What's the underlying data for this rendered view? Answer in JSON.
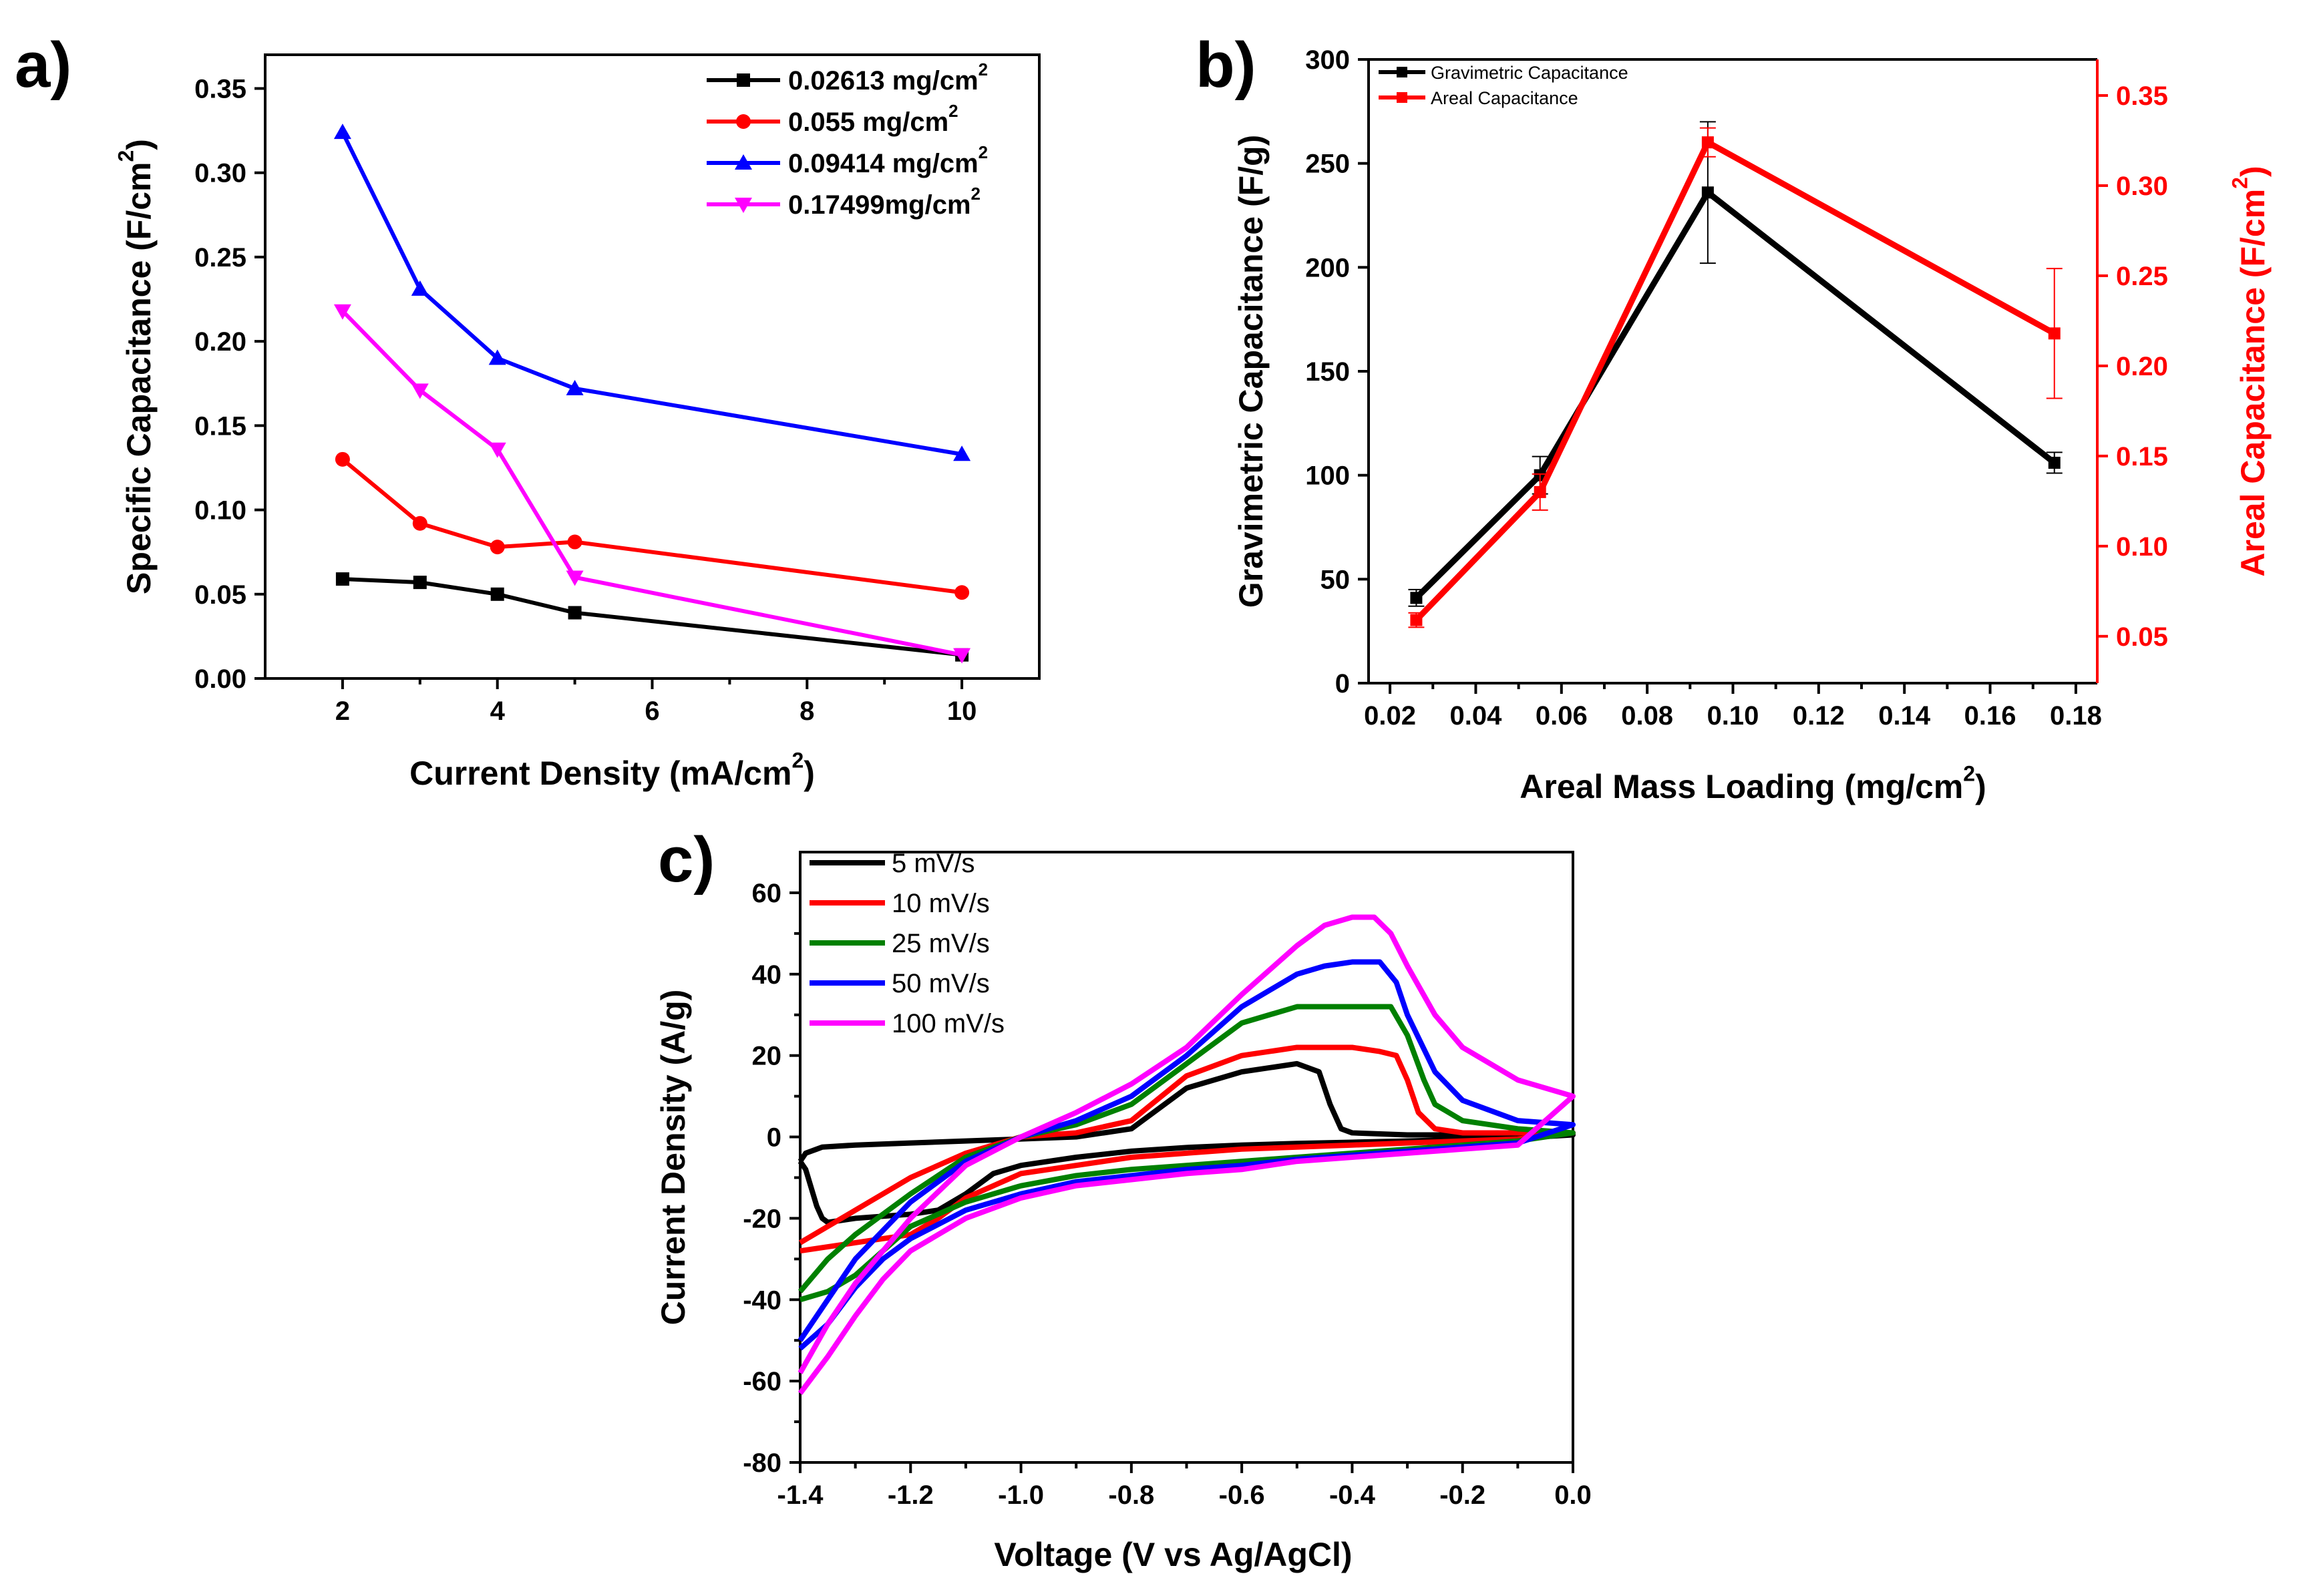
{
  "chart_data": [
    {
      "id": "a",
      "type": "line",
      "panel_label": "a)",
      "xlabel": "Current Density (mA/cm",
      "xlabel_sup": "2",
      "xlabel_tail": ")",
      "ylabel": "Specific Capacitance (F/cm",
      "ylabel_sup": "2",
      "ylabel_tail": ")",
      "xlim": [
        1,
        11
      ],
      "ylim": [
        0,
        0.37
      ],
      "xticks": [
        2,
        4,
        6,
        8,
        10
      ],
      "xtick_labels": [
        "2",
        "4",
        "6",
        "8",
        "10"
      ],
      "yticks": [
        0,
        0.05,
        0.1,
        0.15,
        0.2,
        0.25,
        0.3,
        0.35
      ],
      "ytick_labels": [
        "0.00",
        "0.05",
        "0.10",
        "0.15",
        "0.20",
        "0.25",
        "0.30",
        "0.35"
      ],
      "legend_position": "top-right",
      "x": [
        2,
        3,
        4,
        5,
        10
      ],
      "series": [
        {
          "name": "0.02613 mg/cm",
          "sup": "2",
          "color": "#000000",
          "marker": "square",
          "values": [
            0.059,
            0.057,
            0.05,
            0.039,
            0.014
          ]
        },
        {
          "name": "0.055 mg/cm",
          "sup": "2",
          "color": "#ff0000",
          "marker": "circle",
          "values": [
            0.13,
            0.092,
            0.078,
            0.081,
            0.051
          ]
        },
        {
          "name": "0.09414 mg/cm",
          "sup": "2",
          "color": "#0000ff",
          "marker": "triangle-up",
          "values": [
            0.324,
            0.231,
            0.19,
            0.172,
            0.133
          ]
        },
        {
          "name": "0.17499mg/cm",
          "sup": "2",
          "color": "#ff00ff",
          "marker": "triangle-down",
          "values": [
            0.218,
            0.171,
            0.136,
            0.06,
            0.014
          ]
        }
      ]
    },
    {
      "id": "b",
      "type": "line",
      "panel_label": "b)",
      "xlabel": "Areal Mass Loading (mg/cm",
      "xlabel_sup": "2",
      "xlabel_tail": ")",
      "ylabel": "Gravimetric Capacitance (F/g)",
      "y2label": "Areal Capacitance (F/cm",
      "y2label_sup": "2",
      "y2label_tail": ")",
      "xlim": [
        0.015,
        0.185
      ],
      "ylim": [
        0,
        300
      ],
      "y2lim": [
        0.024,
        0.37
      ],
      "xticks": [
        0.02,
        0.04,
        0.06,
        0.08,
        0.1,
        0.12,
        0.14,
        0.16,
        0.18
      ],
      "xtick_labels": [
        "0.02",
        "0.04",
        "0.06",
        "0.08",
        "0.10",
        "0.12",
        "0.14",
        "0.16",
        "0.18"
      ],
      "yticks": [
        0,
        50,
        100,
        150,
        200,
        250,
        300
      ],
      "ytick_labels": [
        "0",
        "50",
        "100",
        "150",
        "200",
        "250",
        "300"
      ],
      "y2ticks": [
        0.05,
        0.1,
        0.15,
        0.2,
        0.25,
        0.3,
        0.35
      ],
      "y2tick_labels": [
        "0.05",
        "0.10",
        "0.15",
        "0.20",
        "0.25",
        "0.30",
        "0.35"
      ],
      "legend_position": "top-left",
      "x": [
        0.02613,
        0.055,
        0.09414,
        0.17499
      ],
      "series": [
        {
          "name": "Gravimetric Capacitance",
          "color": "#000000",
          "axis": "left",
          "values": [
            41,
            100,
            236,
            106
          ],
          "err": [
            4,
            9,
            34,
            5
          ]
        },
        {
          "name": "Areal Capacitance",
          "color": "#ff0000",
          "axis": "right",
          "values": [
            0.059,
            0.13,
            0.324,
            0.218
          ],
          "err": [
            0.004,
            0.01,
            0.008,
            0.036
          ]
        }
      ]
    },
    {
      "id": "c",
      "type": "line",
      "panel_label": "c)",
      "xlabel": "Voltage (V vs Ag/AgCl)",
      "ylabel": "Current Density (A/g)",
      "xlim": [
        -1.4,
        0
      ],
      "ylim": [
        -80,
        70
      ],
      "xticks": [
        -1.4,
        -1.2,
        -1.0,
        -0.8,
        -0.6,
        -0.4,
        -0.2,
        0.0
      ],
      "xtick_labels": [
        "-1.4",
        "-1.2",
        "-1.0",
        "-0.8",
        "-0.6",
        "-0.4",
        "-0.2",
        "0.0"
      ],
      "yticks": [
        -80,
        -60,
        -40,
        -20,
        0,
        20,
        40,
        60
      ],
      "ytick_labels": [
        "-80",
        "-60",
        "-40",
        "-20",
        "0",
        "20",
        "40",
        "60"
      ],
      "legend_position": "top-left",
      "series": [
        {
          "name": "5 mV/s",
          "color": "#000000",
          "x": [
            -1.4,
            -1.39,
            -1.37,
            -1.36,
            -1.3,
            -1.2,
            -1.1,
            -1.0,
            -0.9,
            -0.8,
            -0.7,
            -0.6,
            -0.5,
            -0.46,
            -0.44,
            -0.42,
            -0.4,
            -0.3,
            -0.2,
            -0.1,
            0.0,
            -0.1,
            -0.2,
            -0.3,
            -0.4,
            -0.5,
            -0.6,
            -0.7,
            -0.8,
            -0.9,
            -1.0,
            -1.05,
            -1.1,
            -1.15,
            -1.2,
            -1.3,
            -1.35,
            -1.36,
            -1.37,
            -1.39,
            -1.4
          ],
          "y": [
            -6,
            -4,
            -3,
            -2.5,
            -2,
            -1.5,
            -1,
            -0.5,
            0,
            2,
            12,
            16,
            18,
            16,
            8,
            2,
            1,
            0.5,
            0.5,
            0.5,
            0.5,
            -0.3,
            -0.6,
            -1,
            -1.3,
            -1.6,
            -2,
            -2.6,
            -3.5,
            -5,
            -7,
            -9,
            -14,
            -18,
            -19,
            -20,
            -21,
            -20,
            -17,
            -8,
            -6
          ]
        },
        {
          "name": "10 mV/s",
          "color": "#ff0000",
          "x": [
            -1.4,
            -1.35,
            -1.3,
            -1.2,
            -1.1,
            -1.0,
            -0.9,
            -0.8,
            -0.7,
            -0.6,
            -0.5,
            -0.45,
            -0.4,
            -0.35,
            -0.32,
            -0.3,
            -0.28,
            -0.25,
            -0.2,
            -0.1,
            0.0,
            -0.1,
            -0.2,
            -0.3,
            -0.4,
            -0.5,
            -0.6,
            -0.7,
            -0.8,
            -0.9,
            -1.0,
            -1.1,
            -1.15,
            -1.2,
            -1.3,
            -1.4
          ],
          "y": [
            -26,
            -22,
            -18,
            -10,
            -4,
            0,
            1,
            4,
            15,
            20,
            22,
            22,
            22,
            21,
            20,
            14,
            6,
            2,
            1,
            1,
            1,
            -0.5,
            -1,
            -1.5,
            -2,
            -2.5,
            -3,
            -4,
            -5,
            -7,
            -9,
            -15,
            -20,
            -24,
            -26,
            -28
          ]
        },
        {
          "name": "25 mV/s",
          "color": "#008000",
          "x": [
            -1.4,
            -1.35,
            -1.3,
            -1.2,
            -1.1,
            -1.0,
            -0.9,
            -0.8,
            -0.7,
            -0.6,
            -0.5,
            -0.4,
            -0.33,
            -0.3,
            -0.27,
            -0.25,
            -0.2,
            -0.1,
            0.0,
            -0.1,
            -0.2,
            -0.3,
            -0.4,
            -0.5,
            -0.6,
            -0.7,
            -0.8,
            -0.9,
            -1.0,
            -1.1,
            -1.2,
            -1.25,
            -1.3,
            -1.35,
            -1.4
          ],
          "y": [
            -38,
            -30,
            -24,
            -14,
            -5,
            0,
            3,
            8,
            18,
            28,
            32,
            32,
            32,
            25,
            14,
            8,
            4,
            2,
            1,
            -1,
            -2,
            -3,
            -4,
            -5,
            -6,
            -7,
            -8,
            -9.5,
            -12,
            -16,
            -22,
            -28,
            -34,
            -38,
            -40
          ]
        },
        {
          "name": "50 mV/s",
          "color": "#0000ff",
          "x": [
            -1.4,
            -1.35,
            -1.3,
            -1.2,
            -1.1,
            -1.0,
            -0.9,
            -0.8,
            -0.7,
            -0.6,
            -0.5,
            -0.45,
            -0.4,
            -0.35,
            -0.32,
            -0.3,
            -0.25,
            -0.2,
            -0.1,
            0.0,
            -0.1,
            -0.2,
            -0.3,
            -0.4,
            -0.5,
            -0.6,
            -0.7,
            -0.8,
            -0.9,
            -1.0,
            -1.1,
            -1.2,
            -1.25,
            -1.3,
            -1.35,
            -1.4
          ],
          "y": [
            -50,
            -40,
            -30,
            -16,
            -6,
            0,
            4,
            10,
            20,
            32,
            40,
            42,
            43,
            43,
            38,
            30,
            16,
            9,
            4,
            3,
            -1.5,
            -2.5,
            -3.5,
            -4.5,
            -5.5,
            -7,
            -8,
            -9.5,
            -11,
            -14,
            -18,
            -25,
            -30,
            -37,
            -46,
            -52
          ]
        },
        {
          "name": "100 mV/s",
          "color": "#ff00ff",
          "x": [
            -1.4,
            -1.35,
            -1.3,
            -1.2,
            -1.1,
            -1.0,
            -0.9,
            -0.8,
            -0.7,
            -0.6,
            -0.5,
            -0.45,
            -0.4,
            -0.36,
            -0.33,
            -0.3,
            -0.25,
            -0.2,
            -0.1,
            0.0,
            -0.1,
            -0.2,
            -0.3,
            -0.4,
            -0.5,
            -0.6,
            -0.7,
            -0.8,
            -0.9,
            -1.0,
            -1.1,
            -1.2,
            -1.25,
            -1.3,
            -1.35,
            -1.4
          ],
          "y": [
            -58,
            -46,
            -36,
            -20,
            -7,
            0,
            6,
            13,
            22,
            35,
            47,
            52,
            54,
            54,
            50,
            42,
            30,
            22,
            14,
            10,
            -2,
            -3,
            -4,
            -5,
            -6,
            -8,
            -9,
            -10.5,
            -12,
            -15,
            -20,
            -28,
            -35,
            -44,
            -54,
            -63
          ]
        }
      ]
    }
  ]
}
